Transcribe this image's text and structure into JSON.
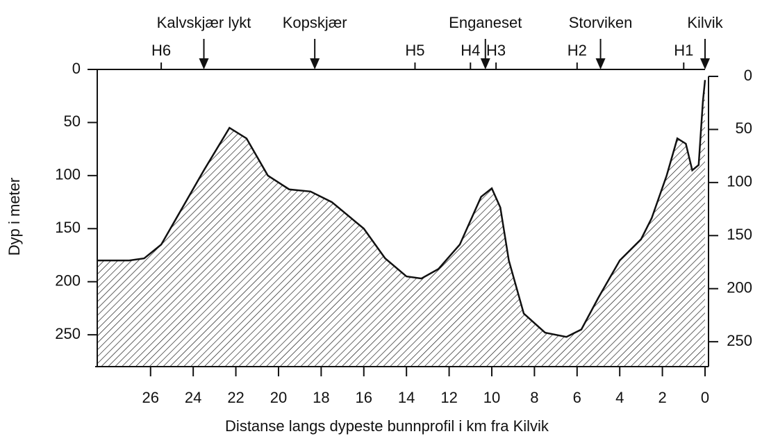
{
  "chart_data": {
    "type": "area",
    "x_label": "Distanse langs dypeste bunnprofil i km fra Kilvik",
    "y_label": "Dyp i meter",
    "x": [
      28.5,
      27,
      26.3,
      25.5,
      24.5,
      23.5,
      22.3,
      21.5,
      20.5,
      19.5,
      18.5,
      17.5,
      16,
      15,
      14,
      13.3,
      12.5,
      11.5,
      10.5,
      10,
      9.6,
      9.2,
      8.5,
      7.5,
      6.5,
      5.8,
      5,
      4,
      3,
      2.5,
      1.8,
      1.3,
      0.9,
      0.6,
      0.3,
      0.1,
      0
    ],
    "values": [
      180,
      180,
      178,
      165,
      130,
      95,
      55,
      65,
      100,
      113,
      115,
      125,
      150,
      178,
      195,
      197,
      188,
      165,
      120,
      112,
      130,
      180,
      230,
      248,
      252,
      245,
      215,
      180,
      160,
      140,
      100,
      65,
      70,
      95,
      90,
      30,
      10
    ],
    "color": "#111111",
    "xlim": [
      28.5,
      0
    ],
    "xticks": [
      26,
      24,
      22,
      20,
      18,
      16,
      14,
      12,
      10,
      8,
      6,
      4,
      2,
      0
    ],
    "ylim": [
      0,
      280
    ],
    "yticks": [
      0,
      50,
      100,
      150,
      200,
      250
    ],
    "y2lim": [
      0,
      280
    ],
    "y2ticks": [
      0,
      50,
      100,
      150,
      200,
      250
    ],
    "stations": [
      {
        "name": "Kalvskjær lykt",
        "x": 23.5
      },
      {
        "name": "Kopskjær",
        "x": 18.3
      },
      {
        "name": "Enganeset",
        "x": 10.3
      },
      {
        "name": "Storviken",
        "x": 4.9
      },
      {
        "name": "Kilvik",
        "x": 0
      }
    ],
    "hydro_stations": [
      {
        "label": "H6",
        "x": 25.5
      },
      {
        "label": "H5",
        "x": 13.6
      },
      {
        "label": "H4",
        "x": 11
      },
      {
        "label": "H3",
        "x": 9.8
      },
      {
        "label": "H2",
        "x": 6
      },
      {
        "label": "H1",
        "x": 1
      }
    ]
  }
}
